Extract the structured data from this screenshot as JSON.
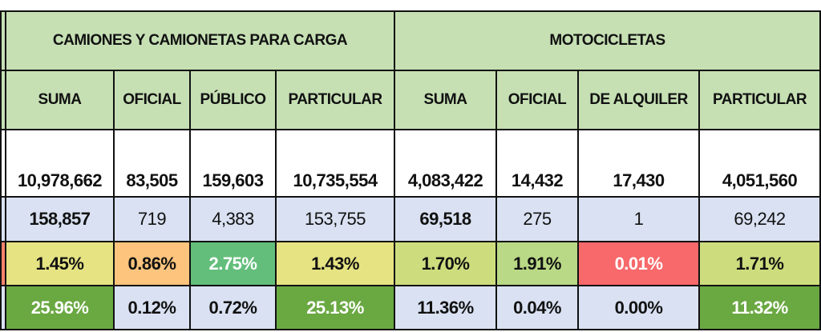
{
  "groups": [
    {
      "title": "CAMIONES Y CAMIONETAS PARA CARGA"
    },
    {
      "title": "MOTOCICLETAS"
    }
  ],
  "columns": [
    "SUMA",
    "OFICIAL",
    "PÚBLICO",
    "PARTICULAR",
    "SUMA",
    "OFICIAL",
    "DE ALQUILER",
    "PARTICULAR"
  ],
  "rows": {
    "totals": [
      "10,978,662",
      "83,505",
      "159,603",
      "10,735,554",
      "4,083,422",
      "14,432",
      "17,430",
      "4,051,560"
    ],
    "counts": [
      "158,857",
      "719",
      "4,383",
      "153,755",
      "69,518",
      "275",
      "1",
      "69,242"
    ],
    "pct_growth": [
      "1.45%",
      "0.86%",
      "2.75%",
      "1.43%",
      "1.70%",
      "1.91%",
      "0.01%",
      "1.71%"
    ],
    "pct_share": [
      "25.96%",
      "0.12%",
      "0.72%",
      "25.13%",
      "11.36%",
      "0.04%",
      "0.00%",
      "11.32%"
    ]
  },
  "colors": {
    "header": "#c6e0b4",
    "light_blue": "#d9e1f2",
    "yellow": "#e6e383",
    "orange": "#fdc47d",
    "green": "#63be7b",
    "dark_green": "#6aa842",
    "red": "#f8696b",
    "lime": "#cddd7e",
    "light_green": "#b9d986"
  }
}
